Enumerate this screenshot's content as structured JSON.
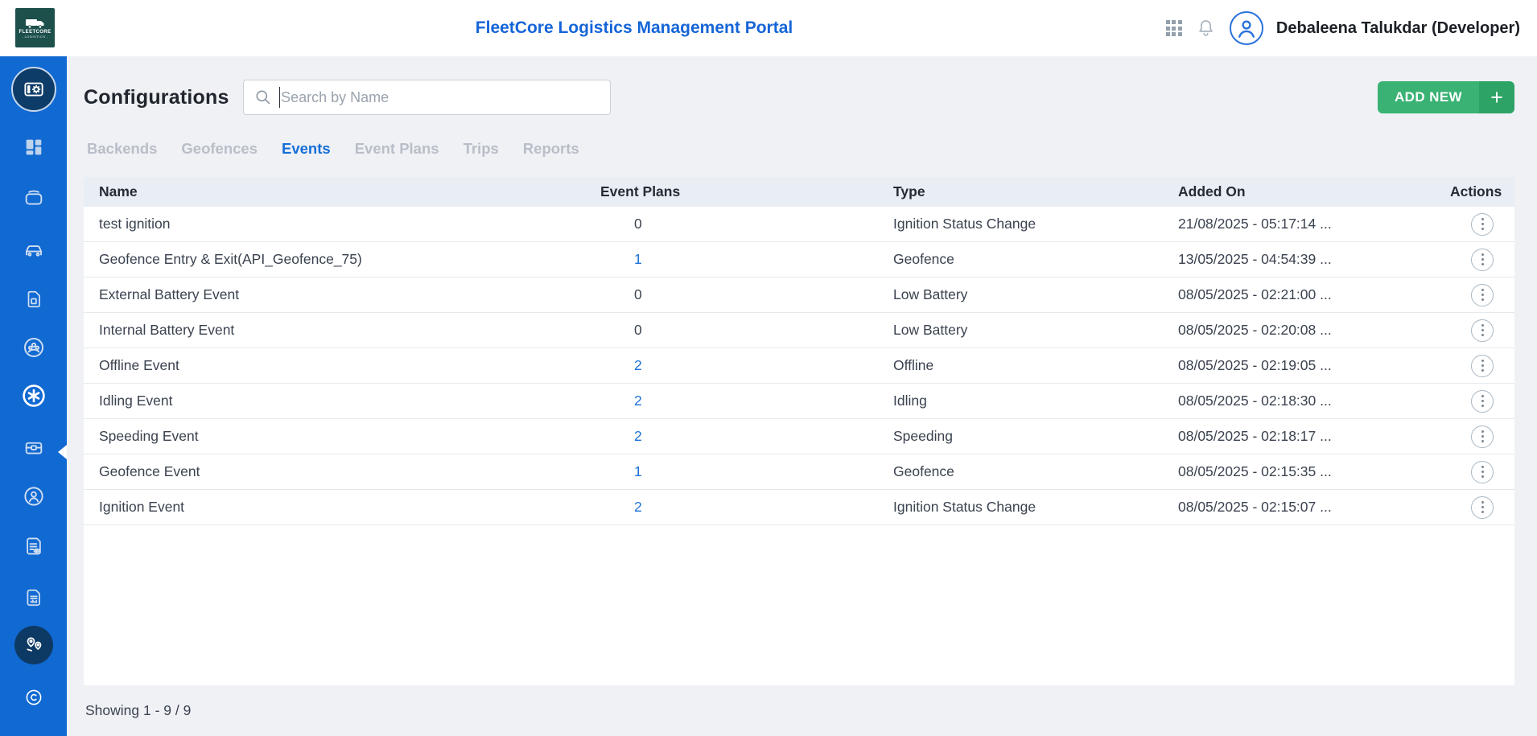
{
  "header": {
    "title": "FleetCore Logistics Management Portal",
    "logo_line1": "FLEETCORE",
    "logo_line2": "- LOGISTICS -",
    "user_name": "Debaleena Talukdar (Developer)"
  },
  "sidebar": {
    "items": [
      {
        "name": "configurations-module-badge",
        "icon": "config-panel",
        "style": "badge"
      },
      {
        "name": "sidebar-item-dashboard",
        "icon": "dashboard"
      },
      {
        "name": "sidebar-item-devices",
        "icon": "device"
      },
      {
        "name": "sidebar-item-vehicles",
        "icon": "car"
      },
      {
        "name": "sidebar-item-sim-cards",
        "icon": "sim"
      },
      {
        "name": "sidebar-item-groups",
        "icon": "users-circle"
      },
      {
        "name": "sidebar-item-configurations",
        "icon": "asterisk-circle",
        "active": true
      },
      {
        "name": "sidebar-item-assets",
        "icon": "briefcase"
      },
      {
        "name": "sidebar-item-drivers",
        "icon": "person-circle"
      },
      {
        "name": "sidebar-item-audit-logs",
        "icon": "doc-eye"
      },
      {
        "name": "sidebar-item-reports",
        "icon": "report-doc"
      },
      {
        "name": "tracking-module-badge",
        "icon": "map-pins",
        "style": "badge-dark"
      },
      {
        "name": "sidebar-item-copyright",
        "icon": "copyright"
      }
    ]
  },
  "page": {
    "heading": "Configurations",
    "search_placeholder": "Search by Name",
    "add_new_label": "ADD NEW",
    "add_new_plus": "+"
  },
  "tabs": [
    {
      "label": "Backends",
      "active": false
    },
    {
      "label": "Geofences",
      "active": false
    },
    {
      "label": "Events",
      "active": true
    },
    {
      "label": "Event Plans",
      "active": false
    },
    {
      "label": "Trips",
      "active": false
    },
    {
      "label": "Reports",
      "active": false
    }
  ],
  "table": {
    "columns": [
      "Name",
      "Event Plans",
      "Type",
      "Added On",
      "Actions"
    ],
    "rows": [
      {
        "name": "test ignition",
        "event_plans": "0",
        "plans_link": false,
        "type": "Ignition Status Change",
        "added_on": "21/08/2025 - 05:17:14 ..."
      },
      {
        "name": "Geofence Entry & Exit(API_Geofence_75)",
        "event_plans": "1",
        "plans_link": true,
        "type": "Geofence",
        "added_on": "13/05/2025 - 04:54:39 ..."
      },
      {
        "name": "External Battery Event",
        "event_plans": "0",
        "plans_link": false,
        "type": "Low Battery",
        "added_on": "08/05/2025 - 02:21:00 ..."
      },
      {
        "name": "Internal Battery Event",
        "event_plans": "0",
        "plans_link": false,
        "type": "Low Battery",
        "added_on": "08/05/2025 - 02:20:08 ..."
      },
      {
        "name": "Offline Event",
        "event_plans": "2",
        "plans_link": true,
        "type": "Offline",
        "added_on": "08/05/2025 - 02:19:05 ..."
      },
      {
        "name": "Idling Event",
        "event_plans": "2",
        "plans_link": true,
        "type": "Idling",
        "added_on": "08/05/2025 - 02:18:30 ..."
      },
      {
        "name": "Speeding Event",
        "event_plans": "2",
        "plans_link": true,
        "type": "Speeding",
        "added_on": "08/05/2025 - 02:18:17 ..."
      },
      {
        "name": "Geofence Event",
        "event_plans": "1",
        "plans_link": true,
        "type": "Geofence",
        "added_on": "08/05/2025 - 02:15:35 ..."
      },
      {
        "name": "Ignition Event",
        "event_plans": "2",
        "plans_link": true,
        "type": "Ignition Status Change",
        "added_on": "08/05/2025 - 02:15:07 ..."
      }
    ]
  },
  "footer": {
    "showing": "Showing 1 - 9 / 9"
  },
  "colors": {
    "sidebar_blue": "#1169d2",
    "title_blue": "#1565d8",
    "link_blue": "#1b70d8",
    "add_new_green": "#39b274",
    "add_new_green_dark": "#2da366",
    "table_header_bg": "#e9edf4",
    "page_bg": "#eff1f5",
    "badge_navy": "#0e3c68",
    "logo_teal": "#1d504b"
  }
}
